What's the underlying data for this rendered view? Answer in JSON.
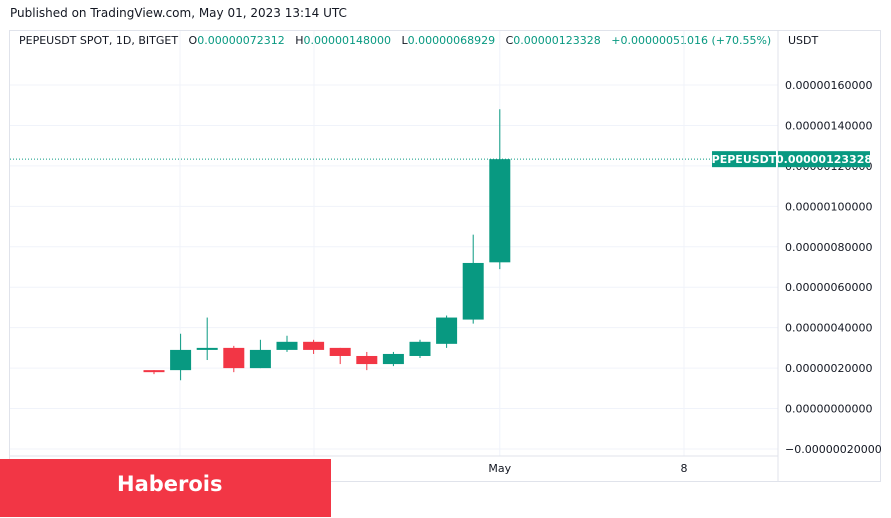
{
  "header": {
    "published": "Published on TradingView.com, May 01, 2023 13:14 UTC"
  },
  "legend": {
    "symbol": "PEPEUSDT SPOT, 1D, BITGET",
    "open_label": "O",
    "open": "0.00000072312",
    "high_label": "H",
    "high": "0.00000148000",
    "low_label": "L",
    "low": "0.00000068929",
    "close_label": "C",
    "close": "0.00000123328",
    "change": "+0.00000051016 (+70.55%)"
  },
  "price_axis": {
    "unit": "USDT"
  },
  "price_tag": {
    "symbol": "PEPEUSDT",
    "value": "0.00000123328"
  },
  "watermark": {
    "text": "Haberois"
  },
  "colors": {
    "up": "#089981",
    "down": "#f23645",
    "grid": "#f0f3fa",
    "axis_text": "#131722"
  },
  "chart_data": {
    "type": "candlestick",
    "ylim": [
      -2e-07,
      1.6e-06
    ],
    "y_ticks": [
      {
        "value": 1.6e-06,
        "label": "0.00000160000"
      },
      {
        "value": 1.4e-06,
        "label": "0.00000140000"
      },
      {
        "value": 1.2e-06,
        "label": "0.00000120000"
      },
      {
        "value": 1e-06,
        "label": "0.00000100000"
      },
      {
        "value": 8e-07,
        "label": "0.00000080000"
      },
      {
        "value": 6e-07,
        "label": "0.00000060000"
      },
      {
        "value": 4e-07,
        "label": "0.00000040000"
      },
      {
        "value": 2e-07,
        "label": "0.00000020000"
      },
      {
        "value": 0.0,
        "label": "0.00000000000"
      },
      {
        "value": -2e-07,
        "label": "−0.00000020000"
      }
    ],
    "x_ticks": [
      {
        "index": 0,
        "label": ""
      },
      {
        "index": 5,
        "label": ""
      },
      {
        "index": 13,
        "label": "May"
      },
      {
        "index": 20,
        "label": "8"
      }
    ],
    "candles": [
      {
        "o": 1.9e-07,
        "h": 1.9e-07,
        "l": 1.7e-07,
        "c": 1.8e-07
      },
      {
        "o": 1.9e-07,
        "h": 3.7e-07,
        "l": 1.4e-07,
        "c": 2.9e-07
      },
      {
        "o": 2.9e-07,
        "h": 4.5e-07,
        "l": 2.4e-07,
        "c": 3e-07
      },
      {
        "o": 3e-07,
        "h": 3.1e-07,
        "l": 1.8e-07,
        "c": 2e-07
      },
      {
        "o": 2e-07,
        "h": 3.4e-07,
        "l": 2e-07,
        "c": 2.9e-07
      },
      {
        "o": 2.9e-07,
        "h": 3.6e-07,
        "l": 2.8e-07,
        "c": 3.3e-07
      },
      {
        "o": 3.3e-07,
        "h": 3.4e-07,
        "l": 2.7e-07,
        "c": 2.9e-07
      },
      {
        "o": 3e-07,
        "h": 3e-07,
        "l": 2.2e-07,
        "c": 2.6e-07
      },
      {
        "o": 2.6e-07,
        "h": 2.8e-07,
        "l": 1.9e-07,
        "c": 2.2e-07
      },
      {
        "o": 2.2e-07,
        "h": 2.8e-07,
        "l": 2.1e-07,
        "c": 2.7e-07
      },
      {
        "o": 2.6e-07,
        "h": 3.4e-07,
        "l": 2.5e-07,
        "c": 3.3e-07
      },
      {
        "o": 3.2e-07,
        "h": 4.6e-07,
        "l": 3e-07,
        "c": 4.5e-07
      },
      {
        "o": 4.4e-07,
        "h": 8.6e-07,
        "l": 4.2e-07,
        "c": 7.2e-07
      },
      {
        "o": 7.2312e-07,
        "h": 1.48e-06,
        "l": 6.8929e-07,
        "c": 1.23328e-06
      }
    ]
  }
}
